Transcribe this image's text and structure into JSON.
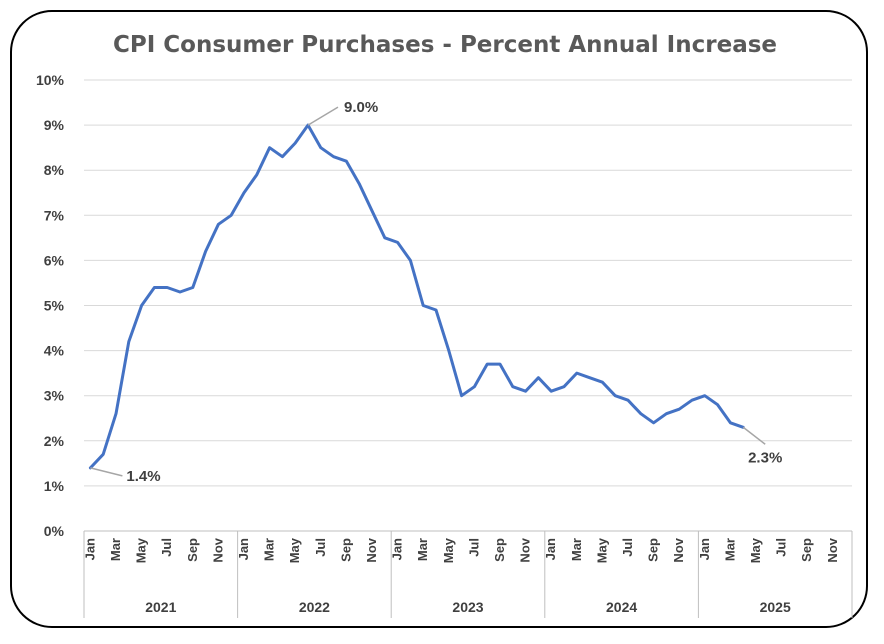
{
  "chart_data": {
    "type": "line",
    "title": "CPI Consumer Purchases - Percent Annual Increase",
    "ylim": [
      0,
      10
    ],
    "y_ticks": [
      "0%",
      "1%",
      "2%",
      "3%",
      "4%",
      "5%",
      "6%",
      "7%",
      "8%",
      "9%",
      "10%"
    ],
    "x_tick_labels": [
      "Jan",
      "Mar",
      "May",
      "Jul",
      "Sep",
      "Nov",
      "Jan",
      "Mar",
      "May",
      "Jul",
      "Sep",
      "Nov",
      "Jan",
      "Mar",
      "May",
      "Jul",
      "Sep",
      "Nov",
      "Jan",
      "Mar",
      "May",
      "Jul",
      "Sep",
      "Nov",
      "Jan",
      "Mar",
      "May",
      "Jul",
      "Sep",
      "Nov"
    ],
    "years": [
      "2021",
      "2022",
      "2023",
      "2024",
      "2025"
    ],
    "grid": true,
    "line_color": "#4472C4",
    "series": [
      {
        "values": [
          1.4,
          1.7,
          2.6,
          4.2,
          5.0,
          5.4,
          5.4,
          5.3,
          5.4,
          6.2,
          6.8,
          7.0,
          7.5,
          7.9,
          8.5,
          8.3,
          8.6,
          9.0,
          8.5,
          8.3,
          8.2,
          7.7,
          7.1,
          6.5,
          6.4,
          6.0,
          5.0,
          4.9,
          4.0,
          3.0,
          3.2,
          3.7,
          3.7,
          3.2,
          3.1,
          3.4,
          3.1,
          3.2,
          3.5,
          3.4,
          3.3,
          3.0,
          2.9,
          2.6,
          2.4,
          2.6,
          2.7,
          2.9,
          3.0,
          2.8,
          2.4,
          2.3
        ]
      }
    ],
    "annotations": [
      {
        "text": "1.4%",
        "index": 0,
        "value": 1.4
      },
      {
        "text": "9.0%",
        "index": 17,
        "value": 9.0
      },
      {
        "text": "2.3%",
        "index": 51,
        "value": 2.3
      }
    ]
  }
}
